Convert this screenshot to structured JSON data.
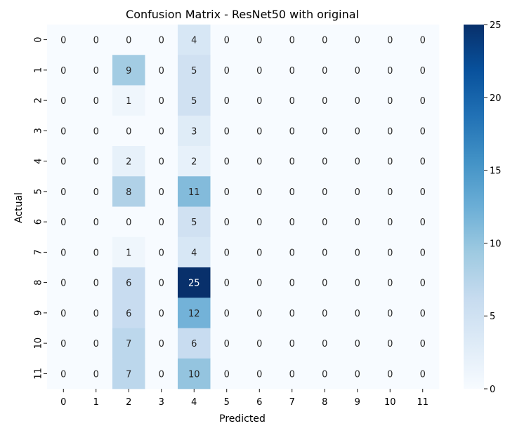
{
  "chart_data": {
    "type": "heatmap",
    "title": "Confusion Matrix - ResNet50 with original",
    "xlabel": "Predicted",
    "ylabel": "Actual",
    "x_categories": [
      "0",
      "1",
      "2",
      "3",
      "4",
      "5",
      "6",
      "7",
      "8",
      "9",
      "10",
      "11"
    ],
    "y_categories": [
      "0",
      "1",
      "2",
      "3",
      "4",
      "5",
      "6",
      "7",
      "8",
      "9",
      "10",
      "11"
    ],
    "values": [
      [
        0,
        0,
        0,
        0,
        4,
        0,
        0,
        0,
        0,
        0,
        0,
        0
      ],
      [
        0,
        0,
        9,
        0,
        5,
        0,
        0,
        0,
        0,
        0,
        0,
        0
      ],
      [
        0,
        0,
        1,
        0,
        5,
        0,
        0,
        0,
        0,
        0,
        0,
        0
      ],
      [
        0,
        0,
        0,
        0,
        3,
        0,
        0,
        0,
        0,
        0,
        0,
        0
      ],
      [
        0,
        0,
        2,
        0,
        2,
        0,
        0,
        0,
        0,
        0,
        0,
        0
      ],
      [
        0,
        0,
        8,
        0,
        11,
        0,
        0,
        0,
        0,
        0,
        0,
        0
      ],
      [
        0,
        0,
        0,
        0,
        5,
        0,
        0,
        0,
        0,
        0,
        0,
        0
      ],
      [
        0,
        0,
        1,
        0,
        4,
        0,
        0,
        0,
        0,
        0,
        0,
        0
      ],
      [
        0,
        0,
        6,
        0,
        25,
        0,
        0,
        0,
        0,
        0,
        0,
        0
      ],
      [
        0,
        0,
        6,
        0,
        12,
        0,
        0,
        0,
        0,
        0,
        0,
        0
      ],
      [
        0,
        0,
        7,
        0,
        6,
        0,
        0,
        0,
        0,
        0,
        0,
        0
      ],
      [
        0,
        0,
        7,
        0,
        10,
        0,
        0,
        0,
        0,
        0,
        0,
        0
      ]
    ],
    "colormap": "Blues",
    "color_range": [
      0,
      25
    ],
    "colorbar_ticks": [
      0,
      5,
      10,
      15,
      20,
      25
    ],
    "annotated": true,
    "grid": false
  }
}
